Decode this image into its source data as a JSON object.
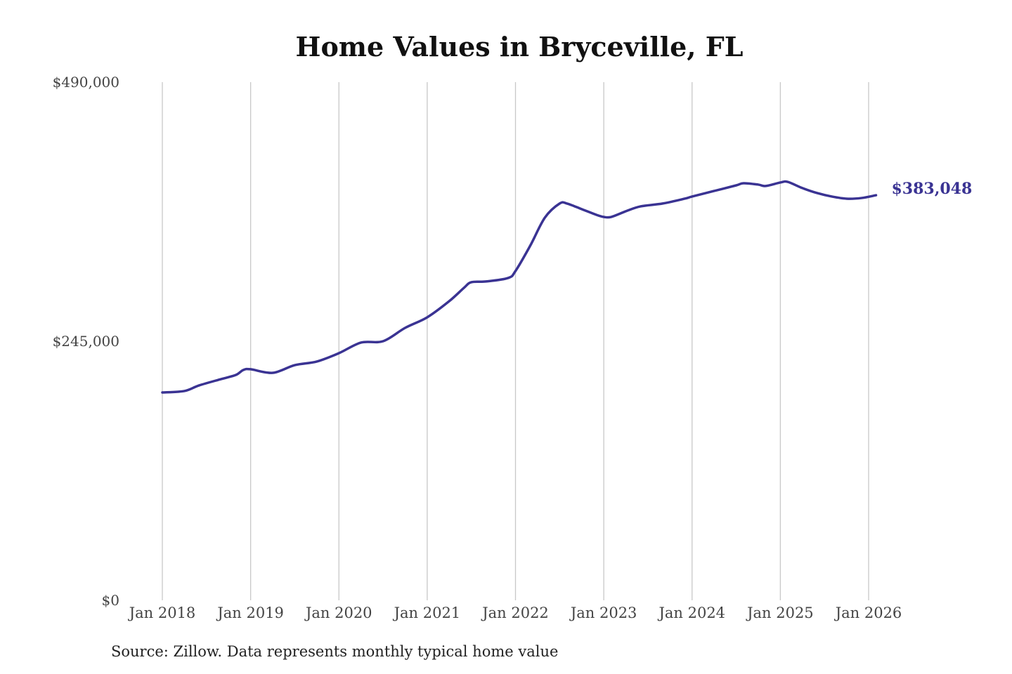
{
  "chart_data": {
    "type": "line",
    "title": "Home Values in Bryceville, FL",
    "source": "Source: Zillow. Data represents monthly typical home value",
    "xlabel": "",
    "ylabel": "",
    "ylim": [
      0,
      490000
    ],
    "yticks": [
      0,
      245000,
      490000
    ],
    "ytick_labels": [
      "$0",
      "$245,000",
      "$490,000"
    ],
    "xlim": [
      "2018-01",
      "2026-02"
    ],
    "xtick_labels": [
      "Jan 2018",
      "Jan 2019",
      "Jan 2020",
      "Jan 2021",
      "Jan 2022",
      "Jan 2023",
      "Jan 2024",
      "Jan 2025",
      "Jan 2026"
    ],
    "grid": "vertical",
    "line_color": "#3a3393",
    "end_label": "$383,048",
    "series": [
      {
        "x": [
          "2018-01",
          "2018-04",
          "2018-06",
          "2018-09",
          "2018-11",
          "2018-12",
          "2019-01",
          "2019-04",
          "2019-07",
          "2019-10",
          "2020-01",
          "2020-04",
          "2020-07",
          "2020-10",
          "2021-01",
          "2021-04",
          "2021-06",
          "2021-07",
          "2021-09",
          "2021-12",
          "2022-01",
          "2022-03",
          "2022-05",
          "2022-07",
          "2022-08",
          "2022-10",
          "2022-12",
          "2023-01",
          "2023-02",
          "2023-04",
          "2023-06",
          "2023-09",
          "2023-12",
          "2024-01",
          "2024-04",
          "2024-07",
          "2024-08",
          "2024-10",
          "2024-11",
          "2025-01",
          "2025-02",
          "2025-04",
          "2025-06",
          "2025-08",
          "2025-10",
          "2025-12",
          "2026-02"
        ],
        "values": [
          196500,
          197900,
          203200,
          209200,
          213100,
          217800,
          218500,
          215100,
          222400,
          225800,
          233700,
          243700,
          245000,
          257600,
          267600,
          282900,
          295500,
          300800,
          301500,
          304800,
          311400,
          335300,
          361900,
          375200,
          375200,
          369900,
          364500,
          362500,
          362500,
          367900,
          372500,
          375200,
          379800,
          381800,
          387100,
          392400,
          394400,
          393100,
          391800,
          395100,
          395700,
          389800,
          385100,
          381800,
          379800,
          380400,
          383048
        ]
      }
    ]
  }
}
